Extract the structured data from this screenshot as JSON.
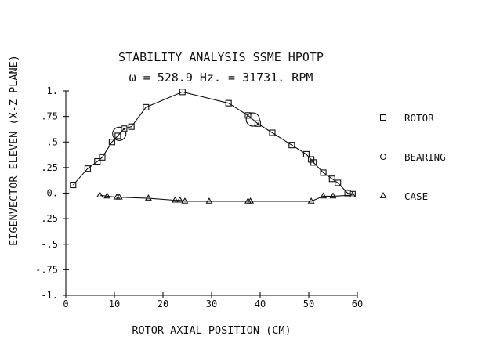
{
  "chart_data": {
    "type": "line",
    "title": "STABILITY ANALYSIS SSME HPOTP",
    "subtitle": "ω = 528.9 Hz. = 31731. RPM",
    "xlabel": "ROTOR AXIAL POSITION (CM)",
    "ylabel": "EIGENVECTOR ELEVEN (X-Z PLANE)",
    "xlim": [
      0,
      60
    ],
    "ylim": [
      -1,
      1
    ],
    "x_ticks": [
      "0",
      "10",
      "20",
      "30",
      "40",
      "50",
      "60"
    ],
    "y_ticks": [
      "1.",
      ".75",
      ".5",
      ".25",
      "0.",
      "-.25",
      "-.5",
      "-.75",
      "-1."
    ],
    "legend_position": "right",
    "series": [
      {
        "name": "ROTOR",
        "marker": "square",
        "x": [
          1.5,
          4.5,
          6.5,
          7.5,
          9.5,
          10.7,
          12.0,
          13.5,
          16.5,
          24.0,
          33.5,
          37.5,
          39.5,
          42.5,
          46.5,
          49.5,
          50.5,
          51.0,
          53.0,
          54.8,
          56.0,
          58.0,
          59.0
        ],
        "y": [
          0.08,
          0.24,
          0.31,
          0.35,
          0.5,
          0.56,
          0.63,
          0.65,
          0.84,
          0.99,
          0.88,
          0.76,
          0.68,
          0.59,
          0.47,
          0.38,
          0.33,
          0.3,
          0.2,
          0.14,
          0.1,
          0.0,
          -0.01
        ]
      },
      {
        "name": "BEARING",
        "marker": "circle",
        "x": [
          11.0,
          38.5
        ],
        "y": [
          0.58,
          0.72
        ]
      },
      {
        "name": "CASE",
        "marker": "triangle",
        "x": [
          7.0,
          8.5,
          10.5,
          11.0,
          17.0,
          22.5,
          23.5,
          24.5,
          29.5,
          37.5,
          38.0,
          50.5,
          53.0,
          55.0,
          59.0
        ],
        "y": [
          -0.02,
          -0.03,
          -0.04,
          -0.04,
          -0.05,
          -0.07,
          -0.07,
          -0.08,
          -0.08,
          -0.08,
          -0.08,
          -0.08,
          -0.03,
          -0.03,
          -0.02
        ]
      }
    ]
  }
}
